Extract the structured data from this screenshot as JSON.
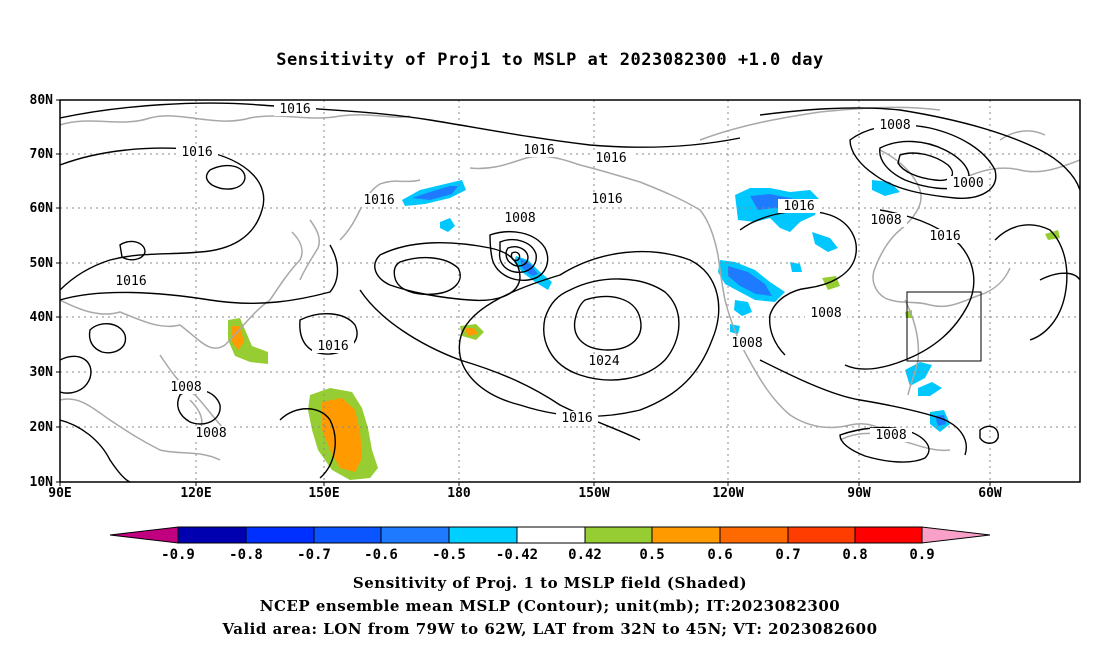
{
  "title": "Sensitivity of Proj1 to MSLP at 2023082300 +1.0 day",
  "lat_labels": [
    "80N",
    "70N",
    "60N",
    "50N",
    "40N",
    "30N",
    "20N",
    "10N"
  ],
  "lon_labels": [
    "90E",
    "120E",
    "150E",
    "180",
    "150W",
    "120W",
    "90W",
    "60W"
  ],
  "contour_labels": [
    {
      "text": "1016"
    },
    {
      "text": "1016"
    },
    {
      "text": "1016"
    },
    {
      "text": "1016"
    },
    {
      "text": "1016"
    },
    {
      "text": "1016"
    },
    {
      "text": "1016"
    },
    {
      "text": "1016"
    },
    {
      "text": "1016"
    },
    {
      "text": "1016"
    },
    {
      "text": "1016"
    },
    {
      "text": "1008"
    },
    {
      "text": "1008"
    },
    {
      "text": "1008"
    },
    {
      "text": "1008"
    },
    {
      "text": "1008"
    },
    {
      "text": "1008"
    },
    {
      "text": "1008"
    },
    {
      "text": "1000"
    },
    {
      "text": "1024"
    }
  ],
  "colorbar": {
    "labels": [
      "-0.9",
      "-0.8",
      "-0.7",
      "-0.6",
      "-0.5",
      "-0.42",
      "0.42",
      "0.5",
      "0.6",
      "0.7",
      "0.8",
      "0.9"
    ],
    "colors": [
      "#c0007f",
      "#0000b0",
      "#0030ff",
      "#0a55ff",
      "#1e7bff",
      "#12b6f0",
      "#00d0ff",
      "#ffffff",
      "#96cd32",
      "#ff9a00",
      "#ff6a00",
      "#ff3d00",
      "#ff0000",
      "#f8a0c8"
    ]
  },
  "captions": [
    "Sensitivity of Proj. 1 to MSLP field (Shaded)",
    "NCEP ensemble mean MSLP (Contour); unit(mb); IT:2023082300",
    "Valid area: LON from 79W to 62W, LAT from 32N to 45N; VT: 2023082600"
  ]
}
